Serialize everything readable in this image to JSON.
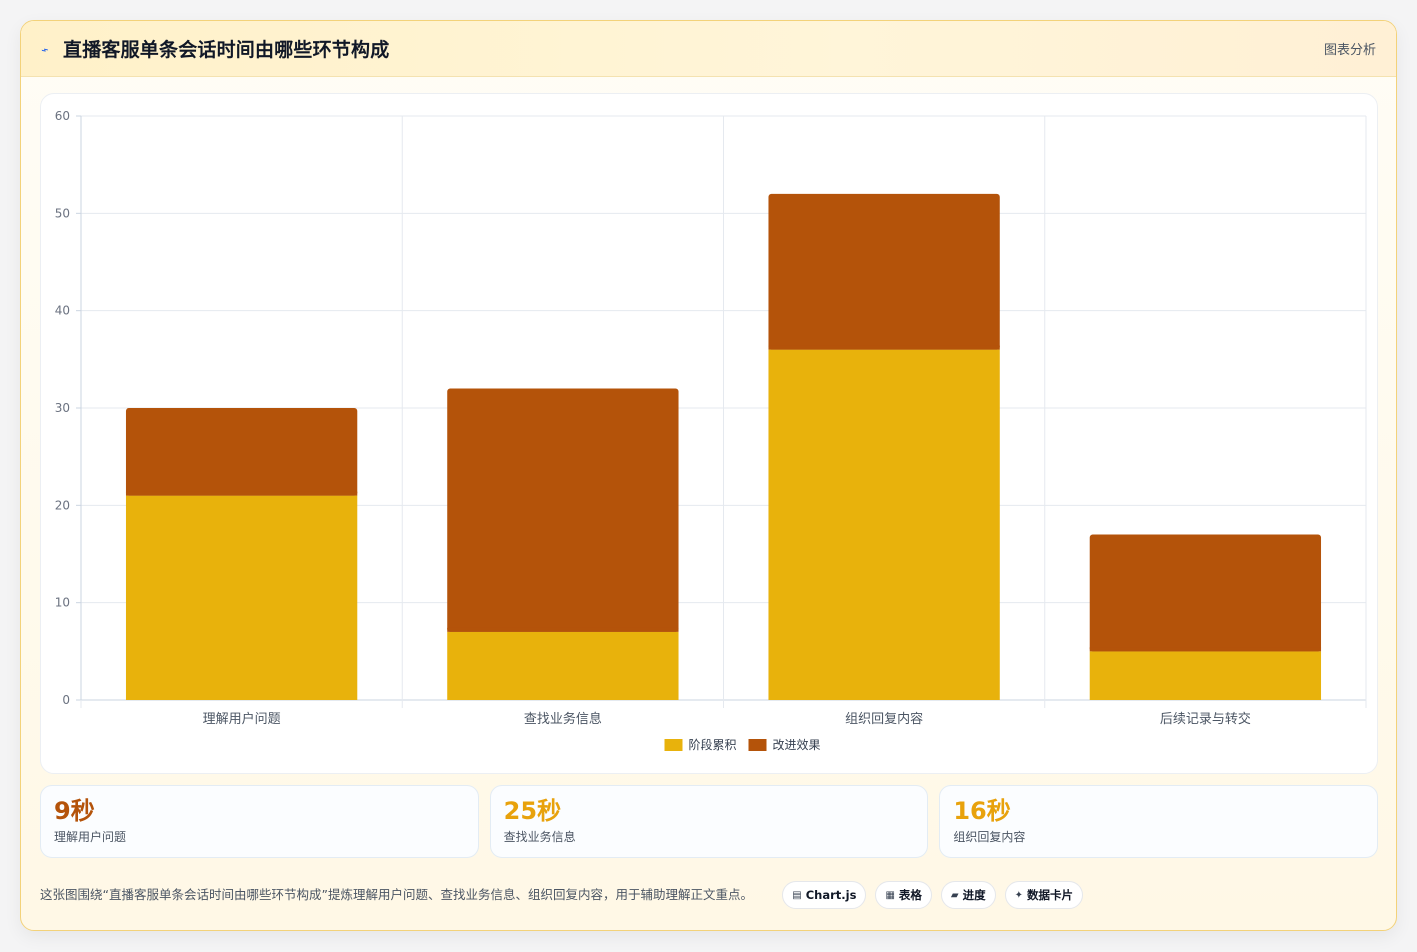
{
  "header": {
    "icon": "pulse-icon",
    "title": "直播客服单条会话时间由哪些环节构成",
    "tag": "图表分析"
  },
  "colors": {
    "stage": "#e8b20c",
    "improve": "#b4530a",
    "stat_dark": "#b4530a",
    "stat_light": "#e8a20c"
  },
  "chart_data": {
    "type": "bar",
    "stacked": true,
    "categories": [
      "理解用户问题",
      "查找业务信息",
      "组织回复内容",
      "后续记录与转交"
    ],
    "series": [
      {
        "name": "阶段累积",
        "values": [
          21,
          7,
          36,
          5
        ],
        "color": "#e8b20c"
      },
      {
        "name": "改进效果",
        "values": [
          9,
          25,
          16,
          12
        ],
        "color": "#b4530a"
      }
    ],
    "ylim": [
      0,
      60
    ],
    "yticks": [
      0,
      10,
      20,
      30,
      40,
      50,
      60
    ],
    "grid": true,
    "legend": "bottom"
  },
  "stats": [
    {
      "value": "9秒",
      "label": "理解用户问题",
      "color": "#b4530a"
    },
    {
      "value": "25秒",
      "label": "查找业务信息",
      "color": "#e8a20c"
    },
    {
      "value": "16秒",
      "label": "组织回复内容",
      "color": "#e8a20c"
    }
  ],
  "footer": {
    "text": "这张图围绕“直播客服单条会话时间由哪些环节构成”提炼理解用户问题、查找业务信息、组织回复内容，用于辅助理解正文重点。",
    "chips": [
      {
        "icon": "chart-icon",
        "glyph": "▤",
        "label": "Chart.js"
      },
      {
        "icon": "table-icon",
        "glyph": "▦",
        "label": "表格"
      },
      {
        "icon": "progress-icon",
        "glyph": "▰",
        "label": "进度"
      },
      {
        "icon": "sparkle-icon",
        "glyph": "✦",
        "label": "数据卡片"
      }
    ]
  }
}
